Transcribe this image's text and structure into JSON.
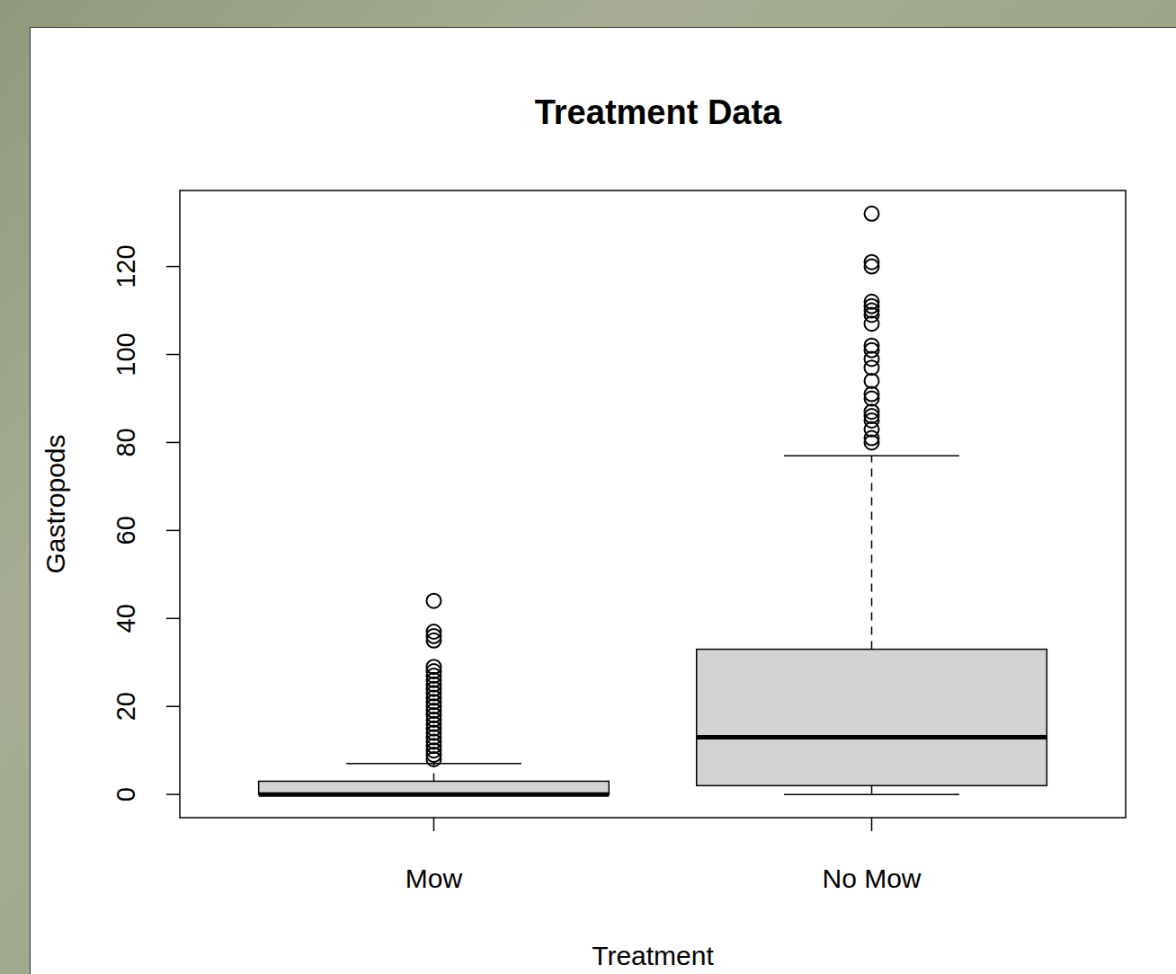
{
  "chart_data": {
    "type": "box",
    "title": "Treatment Data",
    "x_label": "Treatment",
    "y_label": "Gastropods",
    "categories": [
      "Mow",
      "No Mow"
    ],
    "color": "#d3d3d3",
    "boxes": [
      {
        "whisker_low": 0,
        "q1": 0,
        "median": 0,
        "q3": 3,
        "whisker_high": 7,
        "outliers": [
          8,
          9,
          10,
          11,
          12,
          13,
          14,
          15,
          16,
          17,
          18,
          19,
          20,
          21,
          22,
          23,
          24,
          25,
          26,
          27,
          28,
          29,
          35,
          36,
          37,
          44
        ]
      },
      {
        "whisker_low": 0,
        "q1": 2,
        "median": 13,
        "q3": 33,
        "whisker_high": 77,
        "outliers": [
          80,
          81,
          83,
          85,
          86,
          87,
          90,
          91,
          94,
          97,
          99,
          101,
          102,
          107,
          109,
          110,
          111,
          112,
          120,
          121,
          132
        ]
      }
    ],
    "ylim": [
      -5.28,
      137.28
    ],
    "yticks": [
      0,
      20,
      40,
      60,
      80,
      100,
      120
    ],
    "grid": false
  }
}
